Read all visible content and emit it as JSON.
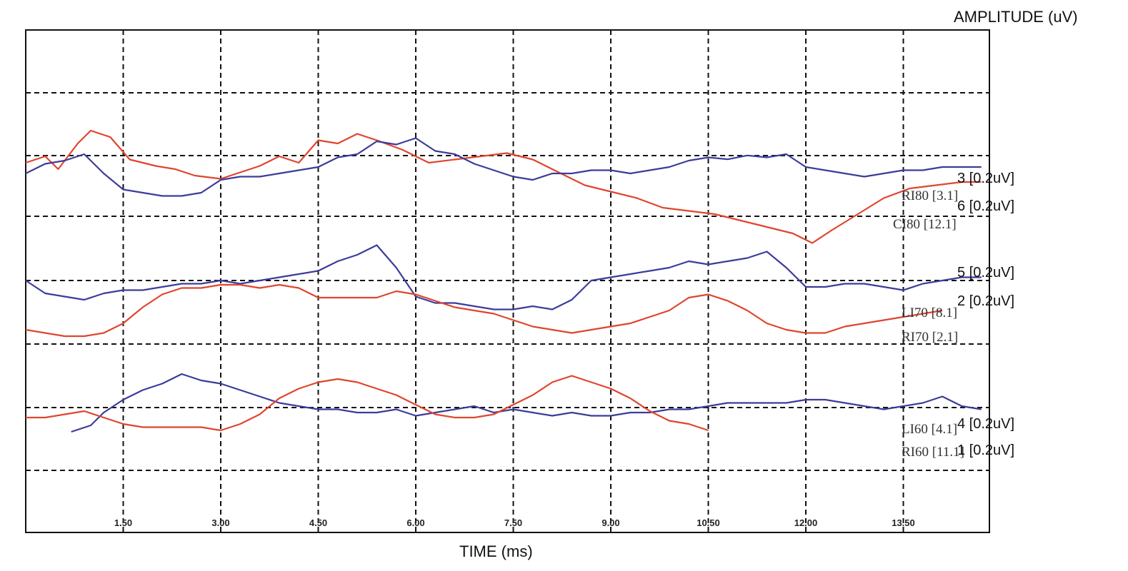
{
  "chart_data": {
    "type": "line",
    "title": "",
    "xlabel": "TIME (ms)",
    "ylabel": "AMPLITUDE (uV)",
    "xlim": [
      0,
      14.7
    ],
    "x_ticks": [
      "1.50",
      "3.00",
      "4.50",
      "6.00",
      "7.50",
      "9.00",
      "10.50",
      "12.00",
      "13.50"
    ],
    "grid": true,
    "colors": {
      "red": "#e0452e",
      "blue": "#3c3c9a",
      "grid": "#111111"
    },
    "series": [
      {
        "name": "RI80 [3.1]",
        "color": "red",
        "trace_label": "3 [0.2uV]",
        "x": [
          0,
          0.3,
          0.5,
          0.8,
          1.0,
          1.3,
          1.6,
          2.0,
          2.3,
          2.6,
          3.0,
          3.3,
          3.6,
          3.9,
          4.2,
          4.5,
          4.8,
          5.1,
          5.4,
          5.8,
          6.2,
          6.6,
          7.0,
          7.4,
          7.8,
          8.2,
          8.6,
          9.0,
          9.4,
          9.8,
          10.2,
          10.6,
          11.0,
          11.4,
          11.8,
          12.1,
          12.4,
          12.8,
          13.2,
          13.6,
          14.0,
          14.4,
          14.7
        ],
        "y": [
          0,
          0.1,
          -0.1,
          0.3,
          0.5,
          0.4,
          0.05,
          -0.05,
          -0.1,
          -0.2,
          -0.25,
          -0.15,
          -0.05,
          0.1,
          0.0,
          0.35,
          0.3,
          0.45,
          0.35,
          0.2,
          0.0,
          0.05,
          0.1,
          0.15,
          0.05,
          -0.15,
          -0.35,
          -0.45,
          -0.55,
          -0.7,
          -0.75,
          -0.8,
          -0.9,
          -1.0,
          -1.1,
          -1.25,
          -1.05,
          -0.8,
          -0.55,
          -0.4,
          -0.35,
          -0.3,
          -0.3
        ]
      },
      {
        "name": "CI80 [12.1]",
        "color": "blue",
        "trace_label": "6 [0.2uV]",
        "x": [
          0,
          0.3,
          0.6,
          0.9,
          1.2,
          1.5,
          1.8,
          2.1,
          2.4,
          2.7,
          3.0,
          3.3,
          3.6,
          3.9,
          4.2,
          4.5,
          4.8,
          5.1,
          5.4,
          5.7,
          6.0,
          6.3,
          6.6,
          6.9,
          7.2,
          7.5,
          7.8,
          8.1,
          8.4,
          8.7,
          9.0,
          9.3,
          9.6,
          9.9,
          10.2,
          10.5,
          10.8,
          11.1,
          11.4,
          11.7,
          12.0,
          12.3,
          12.6,
          12.9,
          13.2,
          13.5,
          13.8,
          14.1,
          14.4,
          14.7
        ],
        "y": [
          0.5,
          0.65,
          0.7,
          0.8,
          0.5,
          0.25,
          0.2,
          0.15,
          0.15,
          0.2,
          0.4,
          0.45,
          0.45,
          0.5,
          0.55,
          0.6,
          0.75,
          0.8,
          1.0,
          0.95,
          1.05,
          0.85,
          0.8,
          0.65,
          0.55,
          0.45,
          0.4,
          0.5,
          0.5,
          0.55,
          0.55,
          0.5,
          0.55,
          0.6,
          0.7,
          0.75,
          0.72,
          0.78,
          0.75,
          0.8,
          0.6,
          0.55,
          0.5,
          0.45,
          0.5,
          0.55,
          0.55,
          0.6,
          0.6,
          0.6
        ]
      },
      {
        "name": "LI70 [8.1]",
        "color": "blue",
        "trace_label": "5 [0.2uV]",
        "x": [
          0,
          0.3,
          0.6,
          0.9,
          1.2,
          1.5,
          1.8,
          2.1,
          2.4,
          2.7,
          3.0,
          3.3,
          3.6,
          3.9,
          4.2,
          4.5,
          4.8,
          5.1,
          5.4,
          5.7,
          6.0,
          6.3,
          6.6,
          6.9,
          7.2,
          7.5,
          7.8,
          8.1,
          8.4,
          8.7,
          9.0,
          9.3,
          9.6,
          9.9,
          10.2,
          10.5,
          10.8,
          11.1,
          11.4,
          11.7,
          12.0,
          12.3,
          12.6,
          12.9,
          13.2,
          13.5,
          13.8,
          14.1,
          14.4,
          14.7
        ],
        "y": [
          0,
          -0.2,
          -0.25,
          -0.3,
          -0.2,
          -0.15,
          -0.15,
          -0.1,
          -0.05,
          -0.05,
          0.0,
          -0.05,
          0.0,
          0.05,
          0.1,
          0.15,
          0.3,
          0.4,
          0.55,
          0.2,
          -0.25,
          -0.35,
          -0.35,
          -0.4,
          -0.45,
          -0.45,
          -0.4,
          -0.45,
          -0.3,
          0.0,
          0.05,
          0.1,
          0.15,
          0.2,
          0.3,
          0.25,
          0.3,
          0.35,
          0.45,
          0.2,
          -0.1,
          -0.1,
          -0.05,
          -0.05,
          -0.1,
          -0.15,
          -0.05,
          0.0,
          0.05,
          0.05
        ]
      },
      {
        "name": "RI70 [2.1]",
        "color": "red",
        "trace_label": "2 [0.2uV]",
        "x": [
          0,
          0.3,
          0.6,
          0.9,
          1.2,
          1.5,
          1.8,
          2.1,
          2.4,
          2.7,
          3.0,
          3.3,
          3.6,
          3.9,
          4.2,
          4.5,
          4.8,
          5.1,
          5.4,
          5.7,
          6.0,
          6.3,
          6.6,
          6.9,
          7.2,
          7.5,
          7.8,
          8.1,
          8.4,
          8.7,
          9.0,
          9.3,
          9.6,
          9.9,
          10.2,
          10.5,
          10.8,
          11.1,
          11.4,
          11.7,
          12.0,
          12.3,
          12.6,
          12.9,
          13.2,
          13.5,
          13.8,
          14.1
        ],
        "y": [
          0,
          -0.05,
          -0.1,
          -0.1,
          -0.05,
          0.1,
          0.35,
          0.55,
          0.65,
          0.65,
          0.7,
          0.7,
          0.65,
          0.7,
          0.65,
          0.5,
          0.5,
          0.5,
          0.5,
          0.6,
          0.55,
          0.45,
          0.35,
          0.3,
          0.25,
          0.15,
          0.05,
          0.0,
          -0.05,
          0.0,
          0.05,
          0.1,
          0.2,
          0.3,
          0.5,
          0.55,
          0.45,
          0.3,
          0.1,
          0.0,
          -0.05,
          -0.05,
          0.05,
          0.1,
          0.15,
          0.2,
          0.25,
          0.3
        ]
      },
      {
        "name": "LI60 [4.1]",
        "color": "blue",
        "trace_label": "4 [0.2uV]",
        "x": [
          0.7,
          1.0,
          1.2,
          1.5,
          1.8,
          2.1,
          2.4,
          2.7,
          3.0,
          3.3,
          3.6,
          3.9,
          4.2,
          4.5,
          4.8,
          5.1,
          5.4,
          5.7,
          6.0,
          6.3,
          6.6,
          6.9,
          7.2,
          7.5,
          7.8,
          8.1,
          8.4,
          8.7,
          9.0,
          9.3,
          9.6,
          9.9,
          10.2,
          10.5,
          10.8,
          11.1,
          11.4,
          11.7,
          12.0,
          12.3,
          12.6,
          12.9,
          13.2,
          13.5,
          13.8,
          14.1,
          14.4,
          14.7
        ],
        "y": [
          -0.3,
          -0.2,
          0.0,
          0.2,
          0.35,
          0.45,
          0.6,
          0.5,
          0.45,
          0.35,
          0.25,
          0.15,
          0.1,
          0.05,
          0.05,
          0.0,
          0.0,
          0.05,
          -0.05,
          0.0,
          0.05,
          0.1,
          0.0,
          0.05,
          0.0,
          -0.05,
          0.0,
          -0.05,
          -0.05,
          0.0,
          0.0,
          0.05,
          0.05,
          0.1,
          0.15,
          0.15,
          0.15,
          0.15,
          0.2,
          0.2,
          0.15,
          0.1,
          0.05,
          0.1,
          0.15,
          0.25,
          0.1,
          0.05
        ]
      },
      {
        "name": "RI60 [11.1]",
        "color": "red",
        "trace_label": "1 [0.2uV]",
        "x": [
          0,
          0.3,
          0.6,
          0.9,
          1.2,
          1.5,
          1.8,
          2.1,
          2.4,
          2.7,
          3.0,
          3.3,
          3.6,
          3.9,
          4.2,
          4.5,
          4.8,
          5.1,
          5.4,
          5.7,
          6.0,
          6.3,
          6.6,
          6.9,
          7.2,
          7.5,
          7.8,
          8.1,
          8.4,
          8.7,
          9.0,
          9.3,
          9.6,
          9.9,
          10.2,
          10.5
        ],
        "y": [
          0,
          0.0,
          0.05,
          0.1,
          0.0,
          -0.1,
          -0.15,
          -0.15,
          -0.15,
          -0.15,
          -0.2,
          -0.1,
          0.05,
          0.3,
          0.45,
          0.55,
          0.6,
          0.55,
          0.45,
          0.35,
          0.2,
          0.05,
          0.0,
          0.0,
          0.05,
          0.2,
          0.35,
          0.55,
          0.65,
          0.55,
          0.45,
          0.3,
          0.1,
          -0.05,
          -0.1,
          -0.2
        ]
      }
    ],
    "right_labels": [
      {
        "text": "3 [0.2uV]",
        "style": "sans"
      },
      {
        "text": "RI80 [3.1]",
        "style": "serif"
      },
      {
        "text": "6 [0.2uV]",
        "style": "sans"
      },
      {
        "text": "CI80 [12.1]",
        "style": "serif"
      },
      {
        "text": "5 [0.2uV]",
        "style": "sans"
      },
      {
        "text": "LI70 [8.1]",
        "style": "serif"
      },
      {
        "text": "2 [0.2uV]",
        "style": "sans"
      },
      {
        "text": "RI70 [2.1]",
        "style": "serif"
      },
      {
        "text": "LI60 [4.1]",
        "style": "serif"
      },
      {
        "text": "4 [0.2uV]",
        "style": "sans"
      },
      {
        "text": "RI60 [11.1]",
        "style": "serif"
      },
      {
        "text": "1 [0.2uV]",
        "style": "sans"
      }
    ]
  }
}
